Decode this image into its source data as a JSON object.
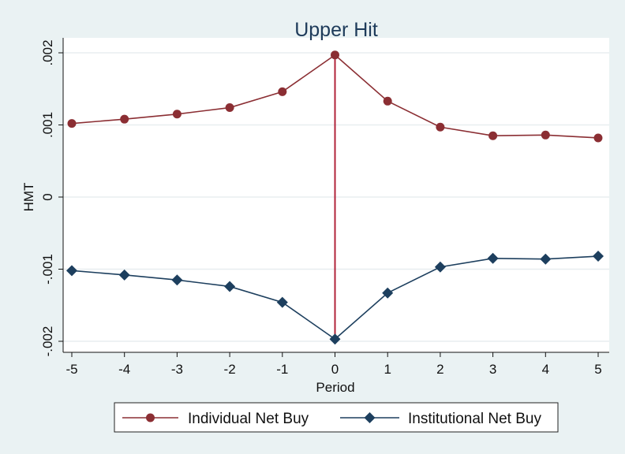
{
  "chart_data": {
    "type": "line",
    "title": "Upper Hit",
    "xlabel": "Period",
    "ylabel": "HMT",
    "xlim": [
      -5,
      5
    ],
    "ylim": [
      -0.002,
      0.002
    ],
    "x": [
      -5,
      -4,
      -3,
      -2,
      -1,
      0,
      1,
      2,
      3,
      4,
      5
    ],
    "x_ticks": [
      "-5",
      "-4",
      "-3",
      "-2",
      "-1",
      "0",
      "1",
      "2",
      "3",
      "4",
      "5"
    ],
    "y_ticks": [
      {
        "value": -0.002,
        "label": "-.002"
      },
      {
        "value": -0.001,
        "label": "-.001"
      },
      {
        "value": 0,
        "label": "0"
      },
      {
        "value": 0.001,
        "label": ".001"
      },
      {
        "value": 0.002,
        "label": ".002"
      }
    ],
    "series": [
      {
        "name": "Individual Net Buy",
        "color": "#8b2e33",
        "marker": "circle",
        "values": [
          0.00102,
          0.00108,
          0.00115,
          0.00124,
          0.00146,
          0.00197,
          0.00133,
          0.00097,
          0.00085,
          0.00086,
          0.00082
        ]
      },
      {
        "name": "Institutional Net Buy",
        "color": "#1d3f5e",
        "marker": "diamond",
        "values": [
          -0.00102,
          -0.00108,
          -0.00115,
          -0.00124,
          -0.00146,
          -0.00197,
          -0.00133,
          -0.00097,
          -0.00085,
          -0.00086,
          -0.00082
        ]
      }
    ],
    "reference_line": {
      "x": 0,
      "color": "#b0233a"
    },
    "grid": true,
    "legend_position": "bottom"
  }
}
